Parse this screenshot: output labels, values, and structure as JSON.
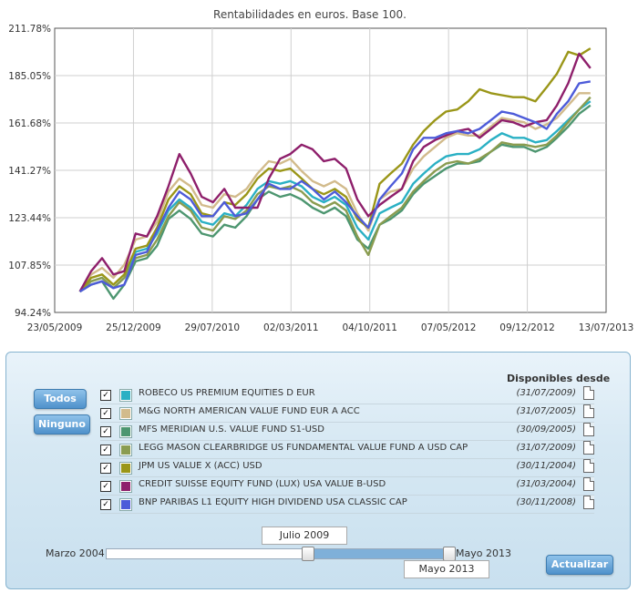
{
  "chart_data": {
    "type": "line",
    "title": "Rentabilidades en euros. Base 100.",
    "ylim": [
      94.24,
      211.78
    ],
    "y_ticks": [
      "94.24%",
      "107.85%",
      "123.44%",
      "141.27%",
      "161.68%",
      "185.05%",
      "211.78%"
    ],
    "y_tick_values": [
      94.24,
      107.85,
      123.44,
      141.27,
      161.68,
      185.05,
      211.78
    ],
    "y_scale": "log",
    "x_ticks": [
      "23/05/2009",
      "25/12/2009",
      "29/07/2010",
      "02/03/2011",
      "04/10/2011",
      "07/05/2012",
      "09/12/2012",
      "13/07/2013"
    ],
    "x_tick_dates": [
      "2009-05-23",
      "2009-12-25",
      "2010-07-29",
      "2011-03-02",
      "2011-10-04",
      "2012-05-07",
      "2012-12-09",
      "2013-07-13"
    ],
    "x": [
      "2009-07-31",
      "2009-08-31",
      "2009-09-30",
      "2009-10-31",
      "2009-11-30",
      "2009-12-31",
      "2010-01-31",
      "2010-02-28",
      "2010-03-31",
      "2010-04-30",
      "2010-05-31",
      "2010-06-30",
      "2010-07-31",
      "2010-08-31",
      "2010-09-30",
      "2010-10-31",
      "2010-11-30",
      "2010-12-31",
      "2011-01-31",
      "2011-02-28",
      "2011-03-31",
      "2011-04-30",
      "2011-05-31",
      "2011-06-30",
      "2011-07-31",
      "2011-08-31",
      "2011-09-30",
      "2011-10-31",
      "2011-11-30",
      "2011-12-31",
      "2012-01-31",
      "2012-02-29",
      "2012-03-31",
      "2012-04-30",
      "2012-05-31",
      "2012-06-30",
      "2012-07-31",
      "2012-08-31",
      "2012-09-30",
      "2012-10-31",
      "2012-11-30",
      "2012-12-31",
      "2013-01-31",
      "2013-02-28",
      "2013-03-31",
      "2013-04-30",
      "2013-05-31"
    ],
    "grid": true,
    "series": [
      {
        "name": "ROBECO US PREMIUM EQUITIES D EUR",
        "color": "#2ab0c4",
        "values": [
          100,
          103,
          104,
          101,
          104,
          112,
          113,
          118,
          126,
          130,
          127,
          122,
          121,
          125,
          124,
          128,
          134,
          137,
          136,
          137,
          135,
          131,
          129,
          131,
          128,
          120,
          116,
          125,
          127,
          129,
          136,
          140,
          144,
          147,
          148,
          148,
          150,
          154,
          157,
          155,
          155,
          153,
          154,
          158,
          163,
          168,
          172
        ]
      },
      {
        "name": "M&G NORTH AMERICAN VALUE FUND EUR A ACC",
        "color": "#d2bb8c",
        "values": [
          100,
          105,
          107,
          104,
          108,
          116,
          117,
          122,
          133,
          138,
          135,
          128,
          127,
          132,
          131,
          134,
          140,
          145,
          144,
          146,
          141,
          137,
          135,
          137,
          134,
          125,
          119,
          130,
          133,
          134,
          142,
          147,
          151,
          155,
          157,
          156,
          156,
          160,
          164,
          163,
          162,
          159,
          161,
          164,
          170,
          176,
          176
        ]
      },
      {
        "name": "MFS MERIDIAN U.S. VALUE FUND S1-USD",
        "color": "#4d9670",
        "values": [
          100,
          102,
          103,
          98,
          102,
          109,
          110,
          114,
          123,
          126,
          123,
          118,
          117,
          121,
          120,
          124,
          130,
          133,
          131,
          132,
          130,
          127,
          125,
          127,
          124,
          116,
          113,
          121,
          123,
          126,
          132,
          136,
          139,
          142,
          144,
          144,
          145,
          149,
          152,
          151,
          151,
          149,
          151,
          155,
          160,
          166,
          170
        ]
      },
      {
        "name": "LEGG MASON CLEARBRIDGE US FUNDAMENTAL VALUE FUND A USD CAP",
        "color": "#8a9c50",
        "values": [
          100,
          103,
          104,
          101,
          104,
          110,
          111,
          116,
          124,
          129,
          126,
          120,
          119,
          124,
          123,
          126,
          132,
          135,
          134,
          135,
          133,
          129,
          127,
          129,
          126,
          117,
          111,
          121,
          124,
          127,
          133,
          137,
          141,
          144,
          145,
          144,
          146,
          149,
          153,
          152,
          152,
          151,
          152,
          156,
          162,
          168,
          174
        ]
      },
      {
        "name": "JPM US VALUE X (ACC) USD",
        "color": "#9a9618",
        "values": [
          100,
          104,
          105,
          102,
          105,
          113,
          114,
          120,
          130,
          135,
          132,
          125,
          124,
          129,
          128,
          132,
          138,
          142,
          141,
          142,
          138,
          134,
          132,
          134,
          131,
          123,
          120,
          136,
          140,
          144,
          152,
          158,
          163,
          167,
          168,
          172,
          178,
          176,
          175,
          174,
          174,
          172,
          179,
          186,
          198,
          196,
          200
        ]
      },
      {
        "name": "CREDIT SUISSE EQUITY FUND (LUX) USA VALUE B-USD",
        "color": "#8e1f6b",
        "values": [
          100,
          106,
          110,
          105,
          106,
          118,
          117,
          124,
          135,
          148,
          140,
          131,
          129,
          134,
          127,
          127,
          127,
          138,
          146,
          148,
          152,
          150,
          145,
          146,
          142,
          130,
          124,
          128,
          131,
          134,
          145,
          151,
          154,
          156,
          158,
          159,
          155,
          159,
          163,
          162,
          160,
          162,
          163,
          170,
          181,
          197,
          189
        ]
      },
      {
        "name": "BNP PARIBAS L1 EQUITY HIGH DIVIDEND USA CLASSIC CAP",
        "color": "#4d5bd9",
        "values": [
          100,
          102,
          103,
          101,
          102,
          111,
          112,
          119,
          127,
          133,
          130,
          124,
          124,
          129,
          124,
          125,
          130,
          136,
          134,
          134,
          137,
          134,
          130,
          133,
          129,
          124,
          120,
          130,
          135,
          140,
          150,
          155,
          155,
          157,
          158,
          157,
          159,
          163,
          167,
          166,
          164,
          162,
          159,
          166,
          172,
          181,
          182
        ]
      }
    ]
  },
  "panel": {
    "buttons": {
      "all": "Todos",
      "none": "Ninguno",
      "update": "Actualizar"
    },
    "available_header": "Disponibles desde",
    "check_mark": "✓",
    "funds": [
      {
        "name": "ROBECO US PREMIUM EQUITIES D EUR",
        "date": "(31/07/2009)",
        "color": "#2ab0c4",
        "checked": true
      },
      {
        "name": "M&G NORTH AMERICAN VALUE FUND EUR A ACC",
        "date": "(31/07/2005)",
        "color": "#d2bb8c",
        "checked": true
      },
      {
        "name": "MFS MERIDIAN U.S. VALUE FUND S1-USD",
        "date": "(30/09/2005)",
        "color": "#4d9670",
        "checked": true
      },
      {
        "name": "LEGG MASON CLEARBRIDGE US FUNDAMENTAL VALUE FUND A USD CAP",
        "date": "(31/07/2009)",
        "color": "#8a9c50",
        "checked": true
      },
      {
        "name": "JPM US VALUE X (ACC) USD",
        "date": "(30/11/2004)",
        "color": "#9a9618",
        "checked": true
      },
      {
        "name": "CREDIT SUISSE EQUITY FUND (LUX) USA VALUE B-USD",
        "date": "(31/03/2004)",
        "color": "#8e1f6b",
        "checked": true
      },
      {
        "name": "BNP PARIBAS L1 EQUITY HIGH DIVIDEND USA CLASSIC CAP",
        "date": "(30/11/2008)",
        "color": "#4d5bd9",
        "checked": true
      }
    ],
    "slider": {
      "min_label": "Marzo 2004",
      "max_label": "Mayo 2013",
      "start_label": "Julio 2009",
      "end_label": "Mayo 2013",
      "range_min": "2004-03",
      "range_max": "2013-05",
      "selected_start": "2009-07",
      "selected_end": "2013-05"
    }
  }
}
